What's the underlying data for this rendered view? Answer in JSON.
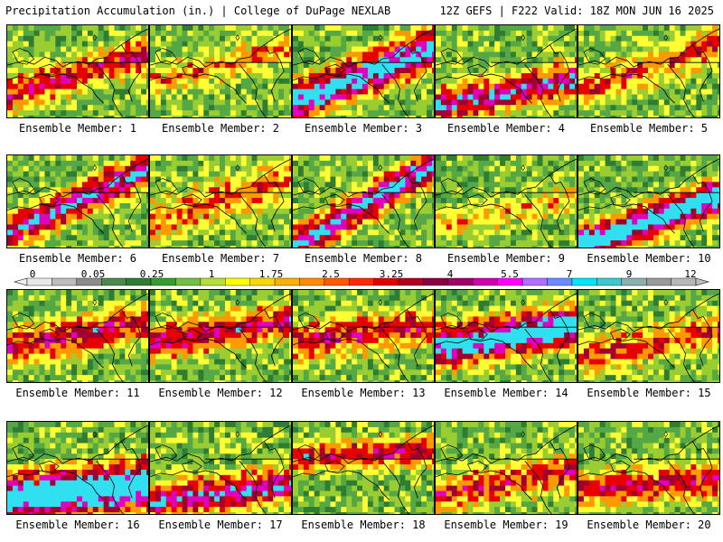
{
  "header": {
    "left": "Precipitation Accumulation (in.) | College of DuPage NEXLAB",
    "right": "12Z GEFS | F222 Valid: 18Z MON JUN 16 2025"
  },
  "panels": [
    {
      "label": "Ensemble Member: 1"
    },
    {
      "label": "Ensemble Member: 2"
    },
    {
      "label": "Ensemble Member: 3"
    },
    {
      "label": "Ensemble Member: 4"
    },
    {
      "label": "Ensemble Member: 5"
    },
    {
      "label": "Ensemble Member: 6"
    },
    {
      "label": "Ensemble Member: 7"
    },
    {
      "label": "Ensemble Member: 8"
    },
    {
      "label": "Ensemble Member: 9"
    },
    {
      "label": "Ensemble Member: 10"
    },
    {
      "label": "Ensemble Member: 11"
    },
    {
      "label": "Ensemble Member: 12"
    },
    {
      "label": "Ensemble Member: 13"
    },
    {
      "label": "Ensemble Member: 14"
    },
    {
      "label": "Ensemble Member: 15"
    },
    {
      "label": "Ensemble Member: 16"
    },
    {
      "label": "Ensemble Member: 17"
    },
    {
      "label": "Ensemble Member: 18"
    },
    {
      "label": "Ensemble Member: 19"
    },
    {
      "label": "Ensemble Member: 20"
    }
  ],
  "colorbar": {
    "tick_labels": [
      "0",
      "0.05",
      "0.25",
      "1",
      "1.75",
      "2.5",
      "3.25",
      "4",
      "5.5",
      "7",
      "9",
      "12"
    ],
    "colors": [
      "#e8e8e8",
      "#bdbdbd",
      "#8c8c8c",
      "#4a8a4a",
      "#2e7d32",
      "#33a02c",
      "#74c044",
      "#b5de3c",
      "#ffff00",
      "#ffd700",
      "#ffb000",
      "#ff8c00",
      "#ff5a00",
      "#ff2a00",
      "#e00000",
      "#b00020",
      "#8b0040",
      "#a0006a",
      "#d000b0",
      "#ff00ff",
      "#b070ff",
      "#6a8cff",
      "#00e5ff",
      "#40c8d0",
      "#8ab0b0",
      "#9a9a9a",
      "#b8b8b8"
    ]
  },
  "palette": {
    "green_dark": "#2e7d32",
    "green": "#55a845",
    "green_light": "#9acd32",
    "yellow": "#ffff33",
    "orange": "#ff9900",
    "red": "#e60000",
    "maroon": "#a00030",
    "magenta": "#e000c0",
    "cyan": "#30e0f0"
  }
}
